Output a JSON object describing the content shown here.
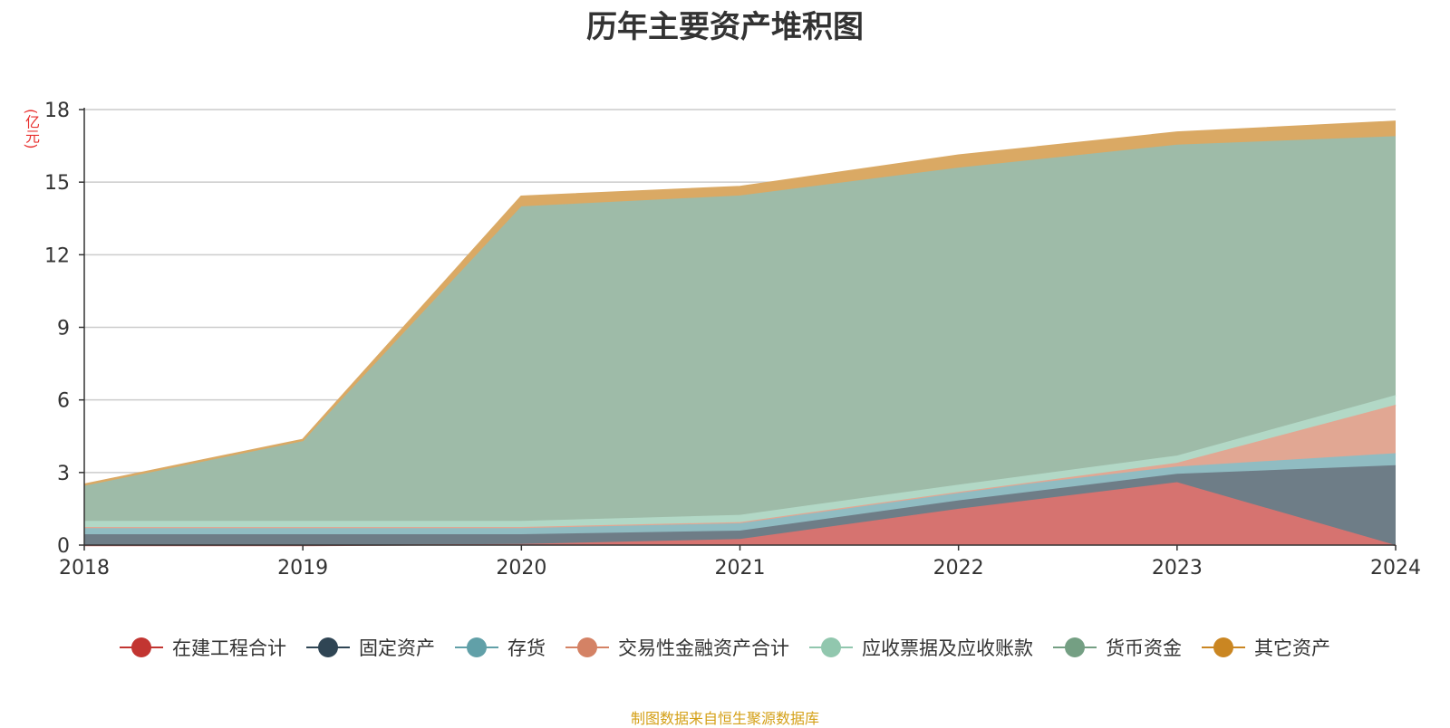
{
  "chart_data": {
    "type": "area",
    "stacked": true,
    "title": "历年主要资产堆积图",
    "ylabel": "(亿元)",
    "x": [
      "2018",
      "2019",
      "2020",
      "2021",
      "2022",
      "2023",
      "2024"
    ],
    "ylim": [
      0,
      18
    ],
    "yticks": [
      "0",
      "3",
      "6",
      "9",
      "12",
      "15",
      "18"
    ],
    "grid": true,
    "legend_position": "bottom",
    "series": [
      {
        "name": "在建工程合计",
        "color": "#c23531",
        "area_color": "#d67370",
        "values": [
          0.0,
          0.0,
          0.05,
          0.25,
          1.5,
          2.6,
          0.0
        ]
      },
      {
        "name": "固定资产",
        "color": "#2f4554",
        "area_color": "#6e7d87",
        "values": [
          0.45,
          0.45,
          0.4,
          0.35,
          0.35,
          0.35,
          3.3
        ]
      },
      {
        "name": "存货",
        "color": "#61a0a8",
        "area_color": "#90bcc2",
        "values": [
          0.3,
          0.3,
          0.3,
          0.35,
          0.35,
          0.3,
          0.5
        ]
      },
      {
        "name": "交易性金融资产合计",
        "color": "#d48265",
        "area_color": "#e1a793",
        "values": [
          0.0,
          0.0,
          0.0,
          0.0,
          0.0,
          0.15,
          2.0
        ]
      },
      {
        "name": "应收票据及应收账款",
        "color": "#91c7ae",
        "area_color": "#b2d8c6",
        "values": [
          0.25,
          0.25,
          0.25,
          0.3,
          0.3,
          0.3,
          0.4
        ]
      },
      {
        "name": "货币资金",
        "color": "#749f83",
        "area_color": "#9ebba8",
        "values": [
          1.45,
          3.3,
          13.0,
          13.2,
          13.1,
          12.85,
          10.7
        ]
      },
      {
        "name": "其它资产",
        "color": "#ca8622",
        "area_color": "#daa964",
        "values": [
          0.05,
          0.05,
          0.4,
          0.35,
          0.5,
          0.5,
          0.6
        ]
      }
    ]
  },
  "footer": {
    "source": "制图数据来自恒生聚源数据库"
  }
}
